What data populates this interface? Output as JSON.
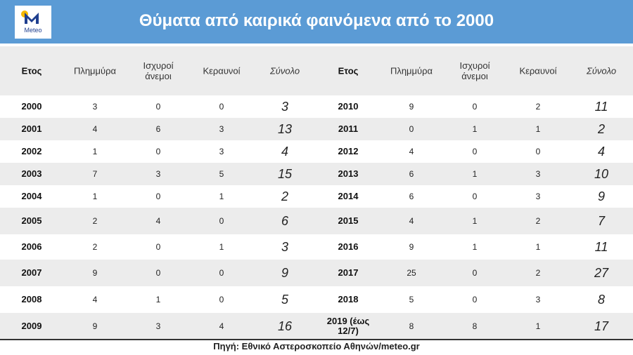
{
  "header": {
    "logo": "Meteo",
    "title": "Θύματα από καιρικά φαινόμενα από το 2000"
  },
  "table": {
    "columns": [
      "Ετος",
      "Πλημμύρα",
      "Ισχυροί άνεμοι",
      "Κεραυνοί",
      "Σύνολο",
      "Ετος",
      "Πλημμύρα",
      "Ισχυροί άνεμοι",
      "Κεραυνοί",
      "Σύνολο"
    ],
    "rows": [
      [
        2000,
        3,
        0,
        0,
        3,
        2010,
        9,
        0,
        2,
        11
      ],
      [
        2001,
        4,
        6,
        3,
        13,
        2011,
        0,
        1,
        1,
        2
      ],
      [
        2002,
        1,
        0,
        3,
        4,
        2012,
        4,
        0,
        0,
        4
      ],
      [
        2003,
        7,
        3,
        5,
        15,
        2013,
        6,
        1,
        3,
        10
      ],
      [
        2004,
        1,
        0,
        1,
        2,
        2014,
        6,
        0,
        3,
        9
      ],
      [
        2005,
        2,
        4,
        0,
        6,
        2015,
        4,
        1,
        2,
        7
      ],
      [
        2006,
        2,
        0,
        1,
        3,
        2016,
        9,
        1,
        1,
        11
      ],
      [
        2007,
        9,
        0,
        0,
        9,
        2017,
        25,
        0,
        2,
        27
      ],
      [
        2008,
        4,
        1,
        0,
        5,
        2018,
        5,
        0,
        3,
        8
      ],
      [
        2009,
        9,
        3,
        4,
        16,
        "2019 (έως 12/7)",
        8,
        8,
        1,
        17
      ]
    ]
  },
  "footer": {
    "source": "Πηγή: Εθνικό Αστεροσκοπείο  Αθηνών/meteo.gr"
  }
}
